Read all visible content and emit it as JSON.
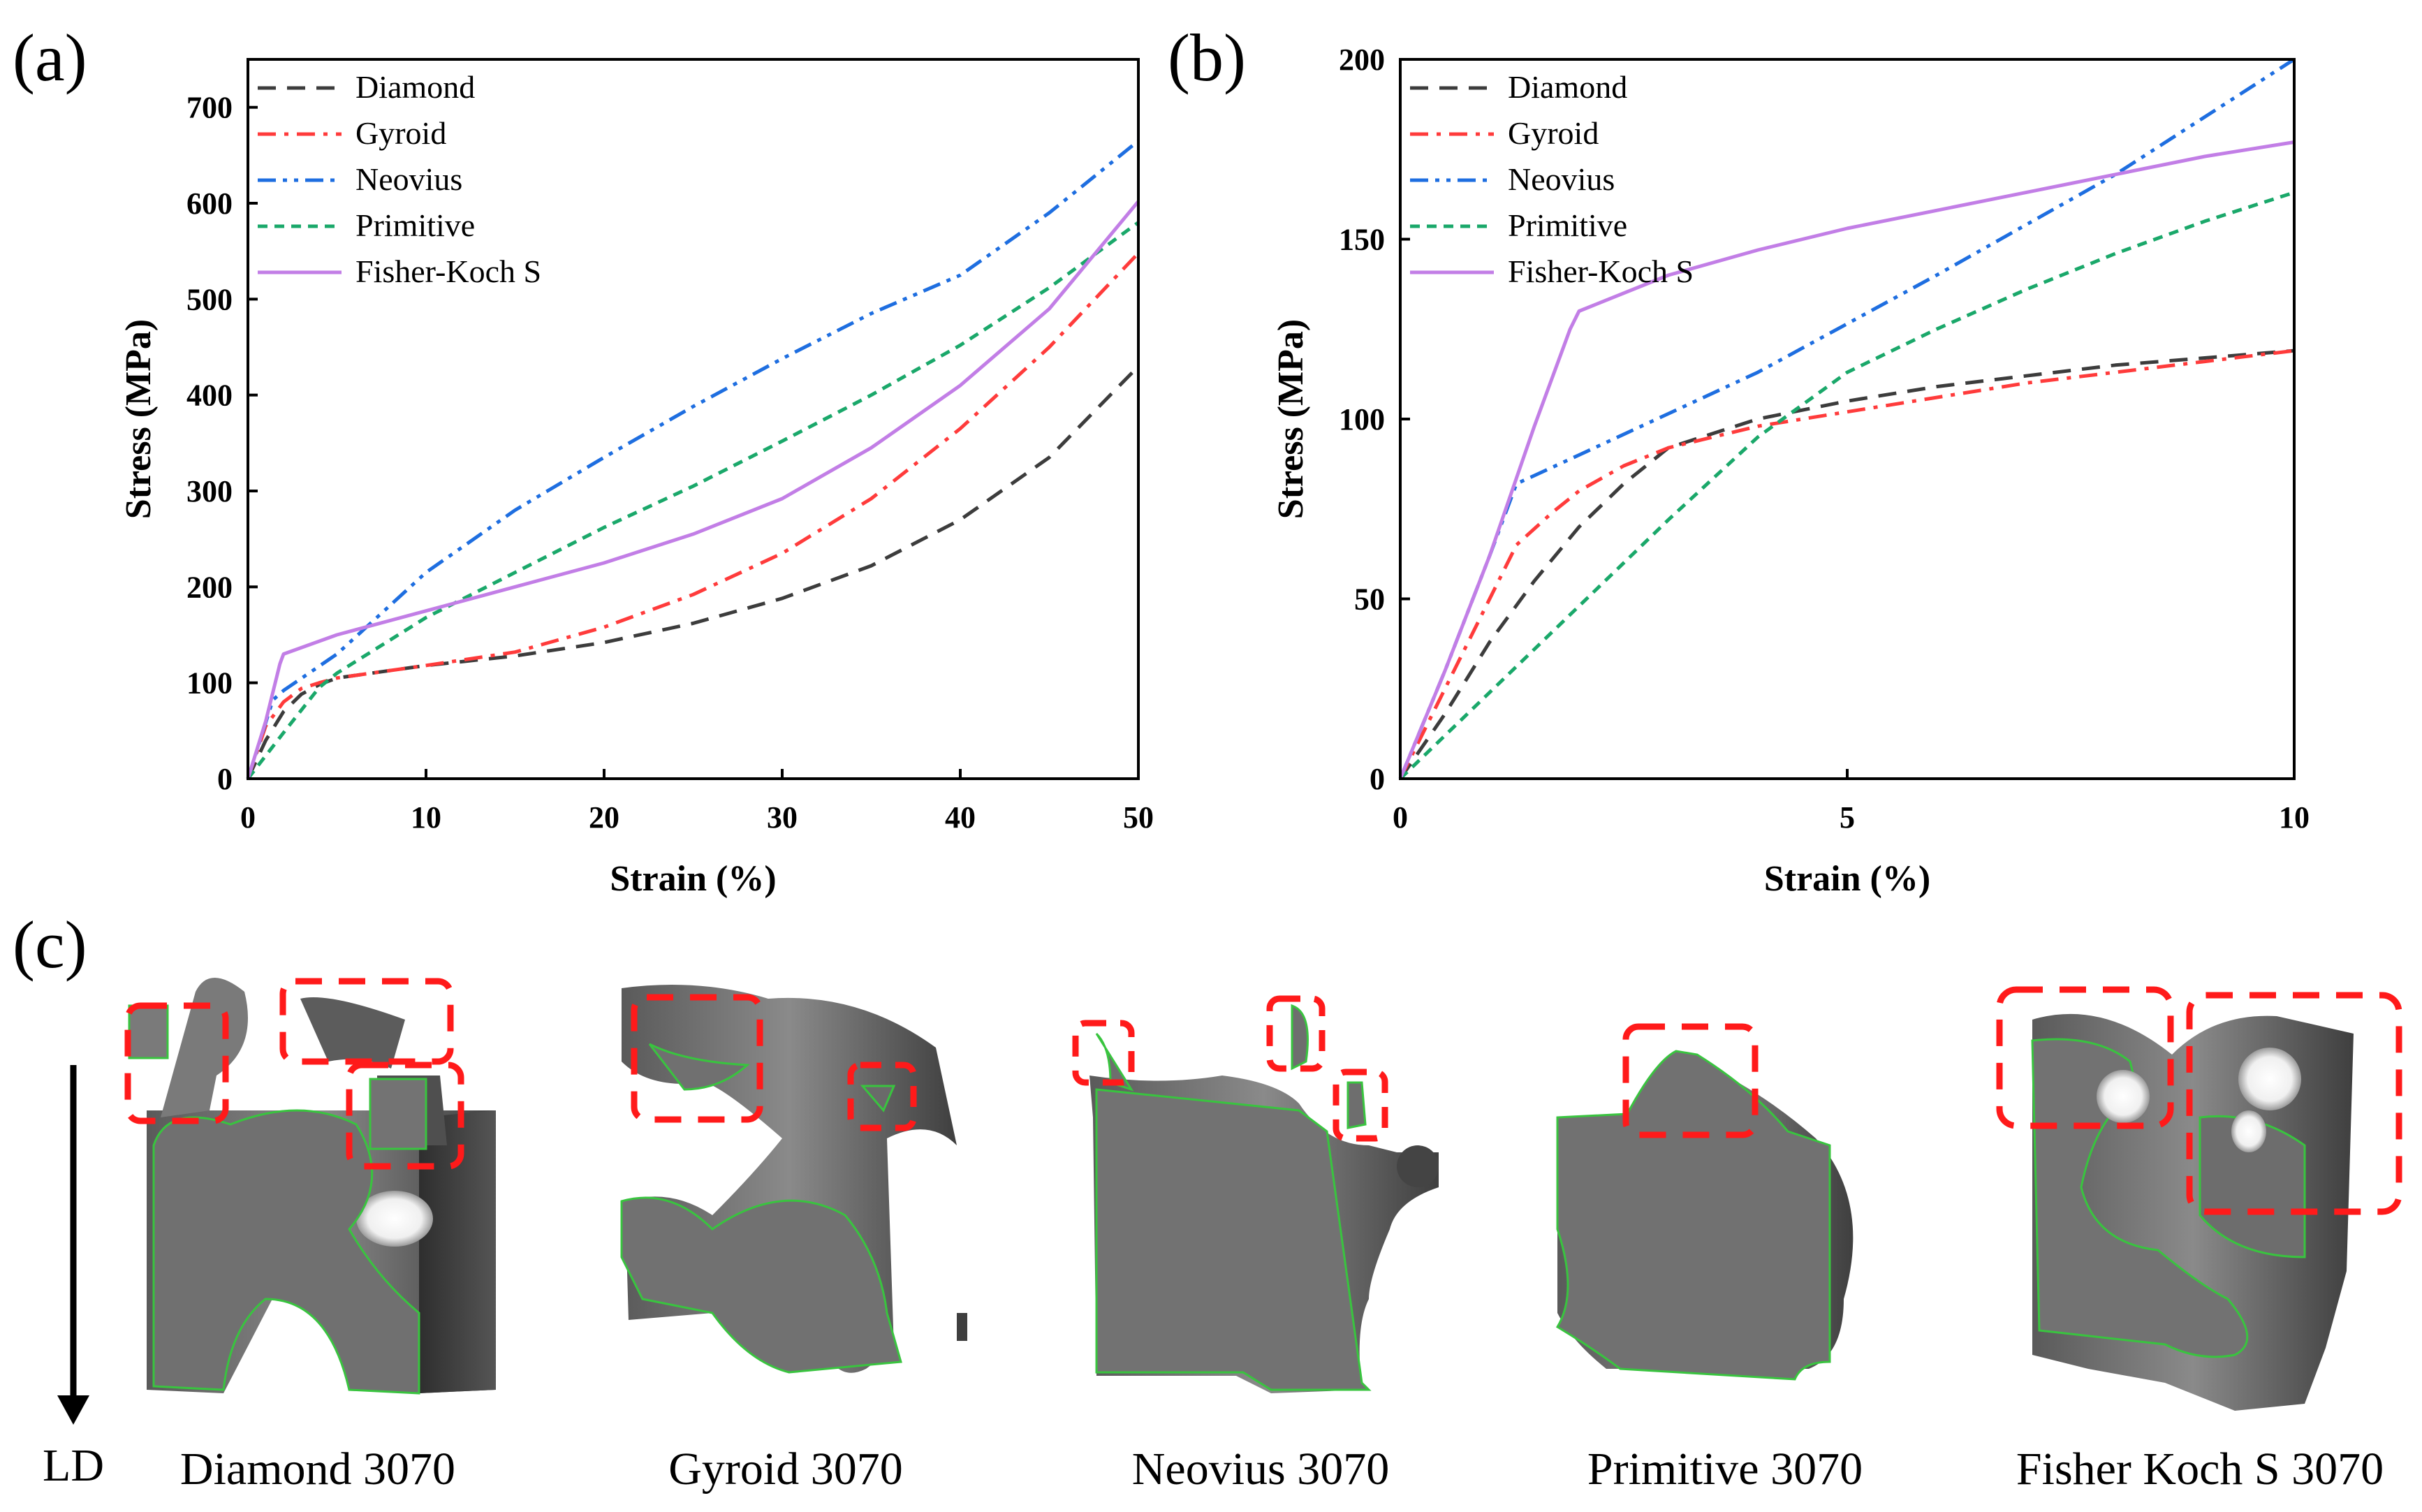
{
  "panels": {
    "a": "(a)",
    "b": "(b)",
    "c": "(c)"
  },
  "colors": {
    "diamond": "#3c3c3c",
    "gyroid": "#ff3b3b",
    "neovius": "#1e6ee0",
    "primitive": "#1aa86a",
    "fisher": "#c27ee6",
    "red_box": "#ff1a1a",
    "outline": "#39c43f",
    "metal": "#6e6e6e"
  },
  "chart_data": [
    {
      "type": "line",
      "panel": "(a)",
      "xlabel": "Strain (%)",
      "ylabel": "Stress (MPa)",
      "xlim": [
        0,
        50
      ],
      "ylim": [
        0,
        750
      ],
      "xticks": [
        0,
        10,
        20,
        30,
        40,
        50
      ],
      "yticks": [
        0,
        100,
        200,
        300,
        400,
        500,
        600,
        700
      ],
      "legend_position": "top-left",
      "series": [
        {
          "name": "Diamond",
          "key": "diamond",
          "dash": "dash",
          "x": [
            0,
            1,
            2,
            3,
            4,
            5,
            10,
            15,
            20,
            25,
            30,
            35,
            40,
            45,
            50
          ],
          "y": [
            0,
            40,
            70,
            88,
            98,
            105,
            118,
            128,
            142,
            162,
            188,
            222,
            270,
            335,
            430
          ]
        },
        {
          "name": "Gyroid",
          "key": "gyroid",
          "dash": "dashdot",
          "x": [
            0,
            1,
            2,
            3,
            4,
            5,
            10,
            15,
            20,
            25,
            30,
            35,
            40,
            45,
            50
          ],
          "y": [
            0,
            55,
            80,
            94,
            100,
            105,
            118,
            132,
            158,
            192,
            235,
            292,
            365,
            450,
            548
          ]
        },
        {
          "name": "Neovius",
          "key": "neovius",
          "dash": "dashdotdot",
          "x": [
            0,
            1.4,
            2,
            5,
            10,
            15,
            20,
            25,
            30,
            35,
            40,
            45,
            50
          ],
          "y": [
            0,
            82,
            92,
            130,
            215,
            280,
            335,
            388,
            438,
            485,
            525,
            590,
            665
          ]
        },
        {
          "name": "Primitive",
          "key": "primitive",
          "dash": "shortdash",
          "x": [
            0,
            2,
            4,
            5,
            10,
            15,
            20,
            25,
            30,
            35,
            40,
            45,
            50
          ],
          "y": [
            0,
            48,
            95,
            110,
            168,
            215,
            262,
            305,
            352,
            400,
            452,
            512,
            580
          ]
        },
        {
          "name": "Fisher-Koch S",
          "key": "fisher",
          "dash": "solid",
          "x": [
            0,
            1,
            1.8,
            2,
            5,
            10,
            15,
            20,
            25,
            30,
            35,
            40,
            45,
            50
          ],
          "y": [
            0,
            60,
            120,
            130,
            150,
            175,
            200,
            225,
            255,
            292,
            345,
            410,
            490,
            602
          ]
        }
      ]
    },
    {
      "type": "line",
      "panel": "(b)",
      "xlabel": "Strain (%)",
      "ylabel": "Stress (MPa)",
      "xlim": [
        0,
        10
      ],
      "ylim": [
        0,
        200
      ],
      "xticks": [
        0,
        5,
        10
      ],
      "yticks": [
        0,
        50,
        100,
        150,
        200
      ],
      "legend_position": "top-left",
      "series": [
        {
          "name": "Diamond",
          "key": "diamond",
          "dash": "dash",
          "x": [
            0,
            0.5,
            1,
            1.5,
            2,
            2.5,
            3,
            4,
            5,
            6,
            7,
            8,
            9,
            10
          ],
          "y": [
            0,
            18,
            38,
            55,
            70,
            82,
            92,
            100,
            105,
            109,
            112,
            115,
            117,
            119
          ]
        },
        {
          "name": "Gyroid",
          "key": "gyroid",
          "dash": "dashdot",
          "x": [
            0,
            0.5,
            1,
            1.3,
            1.7,
            2,
            2.5,
            3,
            4,
            5,
            6,
            7,
            8,
            9,
            10
          ],
          "y": [
            0,
            25,
            50,
            65,
            74,
            80,
            87,
            92,
            98,
            102,
            106,
            110,
            113,
            116,
            119
          ]
        },
        {
          "name": "Neovius",
          "key": "neovius",
          "dash": "dashdotdot",
          "x": [
            0,
            0.5,
            1,
            1.3,
            2,
            4,
            6,
            8,
            10
          ],
          "y": [
            0,
            30,
            62,
            82,
            90,
            113,
            140,
            168,
            200
          ]
        },
        {
          "name": "Primitive",
          "key": "primitive",
          "dash": "shortdash",
          "x": [
            0,
            1,
            2,
            3,
            4,
            5,
            6,
            7,
            8,
            9,
            10
          ],
          "y": [
            0,
            24,
            48,
            72,
            95,
            113,
            125,
            136,
            146,
            155,
            163
          ]
        },
        {
          "name": "Fisher-Koch S",
          "key": "fisher",
          "dash": "solid",
          "x": [
            0,
            0.5,
            1,
            1.5,
            1.9,
            2,
            3,
            4,
            5,
            6,
            7,
            8,
            9,
            10
          ],
          "y": [
            0,
            30,
            62,
            98,
            125,
            130,
            140,
            147,
            153,
            158,
            163,
            168,
            173,
            177
          ]
        }
      ]
    }
  ],
  "structures": {
    "arrow_label": "LD",
    "captions": [
      "Diamond 3070",
      "Gyroid 3070",
      "Neovius 3070",
      "Primitive 3070",
      "Fisher Koch S 3070"
    ]
  }
}
